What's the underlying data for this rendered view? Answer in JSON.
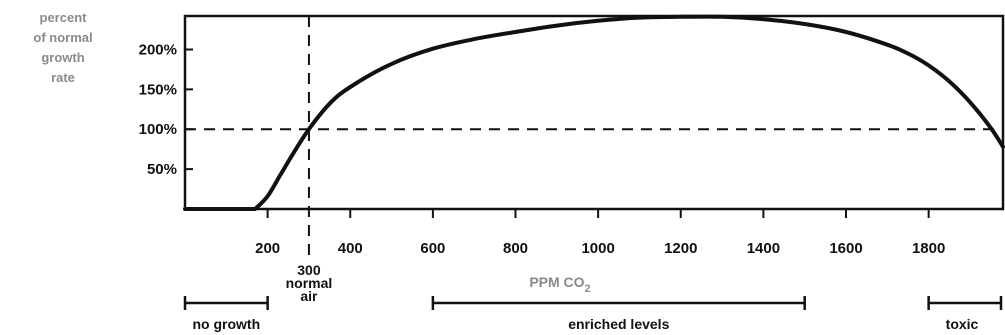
{
  "chart_data": {
    "type": "line",
    "ylabel_lines": [
      "percent",
      "of normal",
      "growth",
      "rate"
    ],
    "xlabel": {
      "main": "PPM CO",
      "sub": "2"
    },
    "xlim": [
      0,
      1980
    ],
    "ylim": [
      0,
      242
    ],
    "x_ticks": [
      200,
      400,
      600,
      800,
      1000,
      1200,
      1400,
      1600,
      1800
    ],
    "x_tick_labels": [
      "200",
      "400",
      "600",
      "800",
      "1000",
      "1200",
      "1400",
      "1600",
      "1800"
    ],
    "y_ticks": [
      50,
      100,
      150,
      200
    ],
    "y_tick_labels": [
      "50%",
      "100%",
      "150%",
      "200%"
    ],
    "series": [
      {
        "x": [
          170,
          200,
          230,
          260,
          300,
          350,
          400,
          500,
          600,
          700,
          800,
          900,
          1000,
          1100,
          1200,
          1300,
          1400,
          1500,
          1600,
          1700,
          1750,
          1800,
          1850,
          1900,
          1950,
          1980
        ],
        "values": [
          0,
          16,
          42,
          68,
          100,
          132,
          153,
          182,
          201,
          213,
          222,
          230,
          236,
          240,
          241,
          241,
          238,
          232,
          222,
          206,
          195,
          180,
          160,
          134,
          102,
          78
        ]
      }
    ],
    "reference_lines": [
      {
        "axis": "y",
        "value": 100,
        "style": "dashed"
      },
      {
        "axis": "x",
        "value": 300,
        "style": "dashed"
      }
    ],
    "annotations": {
      "normal_air": [
        "300",
        "normal",
        "air"
      ],
      "ranges": [
        {
          "label": "no growth",
          "from": 0,
          "to": 200
        },
        {
          "label": "enriched levels",
          "from": 600,
          "to": 1500
        },
        {
          "label": "toxic",
          "from": 1800,
          "to": 1980
        }
      ]
    },
    "grid": false,
    "legend": "none"
  }
}
